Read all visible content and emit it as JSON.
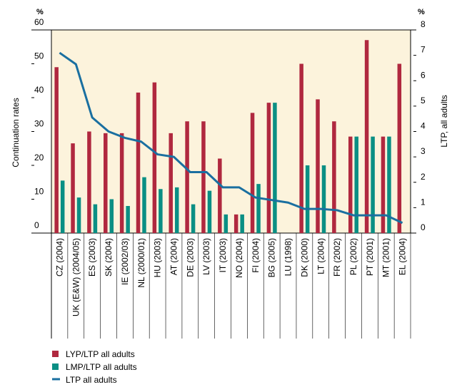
{
  "chart_data": {
    "type": "bar",
    "title": "",
    "categories": [
      "CZ (2004)",
      "UK (E&W) (2004/05)",
      "ES (2003)",
      "SK (2004)",
      "IE (2002/03)",
      "NL (2000/01)",
      "HU (2003)",
      "AT (2004)",
      "DE (2003)",
      "LV (2003)",
      "IT (2003)",
      "NO (2004)",
      "FI (2004)",
      "BG (2005)",
      "LU (1998)",
      "DK (2000)",
      "LT (2004)",
      "FR (2002)",
      "PL (2002)",
      "PT (2001)",
      "MT (2001)",
      "EL (2004)"
    ],
    "series": [
      {
        "name": "LYP/LTP all adults",
        "color": "#b0283f",
        "axis": "left",
        "values": [
          49,
          26.5,
          30,
          29.5,
          29.5,
          41.5,
          44.5,
          29.5,
          33,
          33,
          22,
          5.5,
          35.5,
          38.5,
          null,
          50,
          39.5,
          33,
          28.5,
          57,
          28.5,
          50
        ]
      },
      {
        "name": "LMP/LTP all adults",
        "color": "#0a8f84",
        "axis": "left",
        "values": [
          15.5,
          10.5,
          8.5,
          10,
          8,
          16.5,
          13,
          13.5,
          8.5,
          12.5,
          5.5,
          5.5,
          14.5,
          38.5,
          null,
          20,
          20,
          0,
          28.5,
          28.5,
          28.5,
          0
        ]
      },
      {
        "name": "LTP all adults",
        "color": "#1a6fa0",
        "axis": "right",
        "type": "line",
        "values": [
          7.1,
          6.65,
          4.55,
          4.0,
          3.75,
          3.6,
          3.1,
          3.0,
          2.4,
          2.4,
          1.8,
          1.8,
          1.4,
          1.3,
          1.2,
          0.95,
          0.95,
          0.9,
          0.7,
          0.7,
          0.7,
          0.4
        ]
      }
    ],
    "ylabel": "Continuation rates",
    "y2label": "LTP, all adults",
    "ylim": [
      0,
      60
    ],
    "y2lim": [
      0,
      8
    ],
    "yticks": [
      0,
      10,
      20,
      30,
      40,
      50,
      60
    ],
    "y2ticks": [
      0,
      1,
      2,
      3,
      4,
      5,
      6,
      7,
      8
    ],
    "yunit": "%",
    "y2unit": "%",
    "legend_position": "bottom-left",
    "plot_background": "#fcf3dc"
  }
}
